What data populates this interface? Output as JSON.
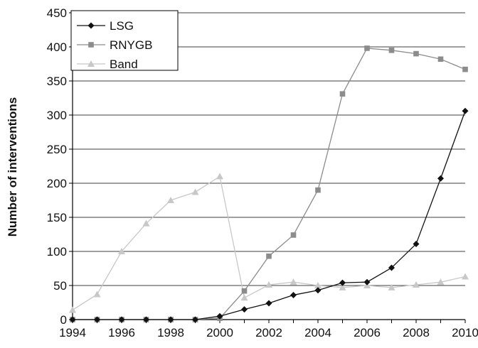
{
  "chart_data": {
    "type": "line",
    "title": "",
    "xlabel": "",
    "ylabel": "Number of interventions",
    "ylim": [
      0,
      450
    ],
    "yticks": [
      0,
      50,
      100,
      150,
      200,
      250,
      300,
      350,
      400,
      450
    ],
    "xlim": [
      1994,
      2010
    ],
    "xticks": [
      1994,
      1996,
      1998,
      2000,
      2002,
      2004,
      2006,
      2008,
      2010
    ],
    "grid": "horizontal",
    "legend_position": "top-left",
    "x": [
      1994,
      1995,
      1996,
      1997,
      1998,
      1999,
      2000,
      2001,
      2002,
      2003,
      2004,
      2005,
      2006,
      2007,
      2008,
      2009,
      2010
    ],
    "series": [
      {
        "name": "LSG",
        "color": "#111111",
        "marker": "diamond",
        "values": [
          0,
          0,
          0,
          0,
          0,
          0,
          5,
          15,
          24,
          36,
          43,
          54,
          55,
          76,
          111,
          207,
          306
        ]
      },
      {
        "name": "RNYGB",
        "color": "#8c8c8c",
        "marker": "square",
        "values": [
          0,
          0,
          0,
          0,
          0,
          0,
          2,
          42,
          93,
          124,
          190,
          331,
          398,
          395,
          390,
          382,
          367
        ]
      },
      {
        "name": "Band",
        "color": "#c8c8c8",
        "marker": "triangle",
        "values": [
          14,
          37,
          100,
          141,
          175,
          187,
          210,
          32,
          51,
          55,
          50,
          47,
          50,
          47,
          51,
          55,
          63
        ]
      }
    ]
  }
}
